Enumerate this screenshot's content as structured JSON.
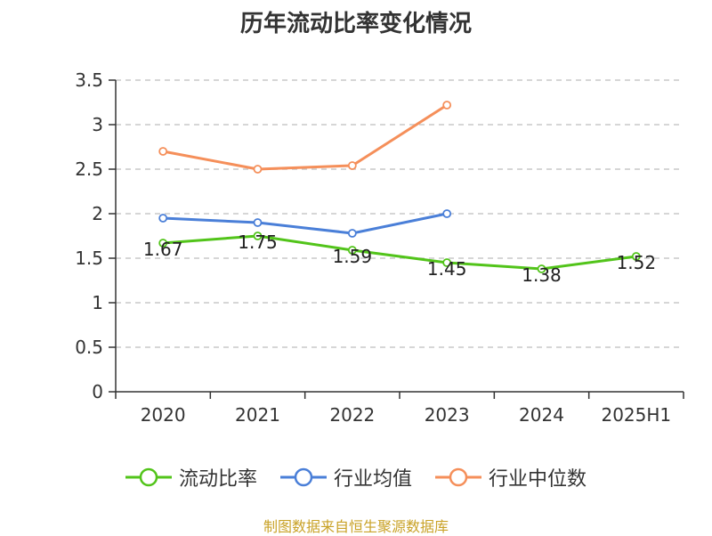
{
  "title": "历年流动比率变化情况",
  "source_note": "制图数据来自恒生聚源数据库",
  "colors": {
    "流动比率": "#52c41a",
    "行业均值": "#4a7fd8",
    "行业中位数": "#f58f5a",
    "axis": "#333333",
    "grid": "#c8c8c8"
  },
  "chart_data": {
    "type": "line",
    "title": "历年流动比率变化情况",
    "categories": [
      "2020",
      "2021",
      "2022",
      "2023",
      "2024",
      "2025H1"
    ],
    "ylim": [
      0,
      3.5
    ],
    "yticks": [
      "0",
      "0.5",
      "1",
      "1.5",
      "2",
      "2.5",
      "3",
      "3.5"
    ],
    "grid": "horizontal dashed",
    "legend_position": "bottom",
    "series": [
      {
        "name": "流动比率",
        "values": [
          1.67,
          1.75,
          1.59,
          1.45,
          1.38,
          1.52
        ],
        "labels": [
          "1.67",
          "1.75",
          "1.59",
          "1.45",
          "1.38",
          "1.52"
        ]
      },
      {
        "name": "行业均值",
        "values": [
          1.95,
          1.9,
          1.78,
          2.0,
          null,
          null
        ]
      },
      {
        "name": "行业中位数",
        "values": [
          2.7,
          2.5,
          2.54,
          3.22,
          null,
          null
        ]
      }
    ]
  },
  "legend": [
    {
      "label": "流动比率"
    },
    {
      "label": "行业均值"
    },
    {
      "label": "行业中位数"
    }
  ]
}
